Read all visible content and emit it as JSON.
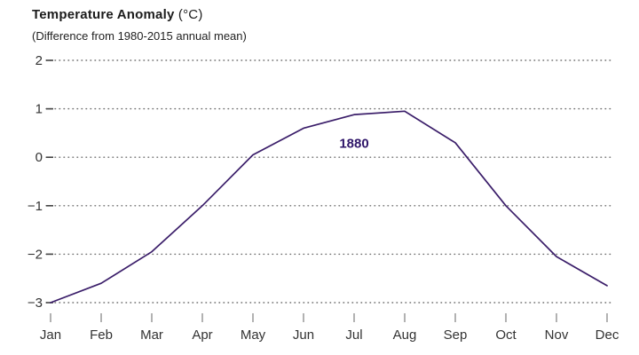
{
  "header": {
    "title": "Temperature Anomaly",
    "title_unit": "(°C)",
    "subtitle": "(Difference from 1980-2015 annual mean)"
  },
  "chart_data": {
    "type": "line",
    "title": "Temperature Anomaly (°C)",
    "subtitle": "(Difference from 1980-2015 annual mean)",
    "categories": [
      "Jan",
      "Feb",
      "Mar",
      "Apr",
      "May",
      "Jun",
      "Jul",
      "Aug",
      "Sep",
      "Oct",
      "Nov",
      "Dec"
    ],
    "series": [
      {
        "name": "1880",
        "values": [
          -3.0,
          -2.6,
          -1.95,
          -1.0,
          0.05,
          0.6,
          0.88,
          0.95,
          0.3,
          -1.0,
          -2.05,
          -2.65
        ],
        "color": "#3a1d69"
      }
    ],
    "xlabel": "",
    "ylabel": "",
    "ylim": [
      -3,
      2
    ],
    "yticks": [
      2,
      1,
      0,
      -1,
      -2,
      -3
    ],
    "grid": "dotted-horizontal",
    "legend_position": "none",
    "annotation": {
      "text": "1880",
      "x_index": 6,
      "y": 0.2
    }
  },
  "colors": {
    "line": "#3a1d69",
    "annotation": "#2f1669",
    "grid": "#6e6e6e",
    "axis_text": "#333333",
    "y_tick_mark": "#444444",
    "x_tick_mark": "#999999",
    "title": "#1c1c1c"
  }
}
